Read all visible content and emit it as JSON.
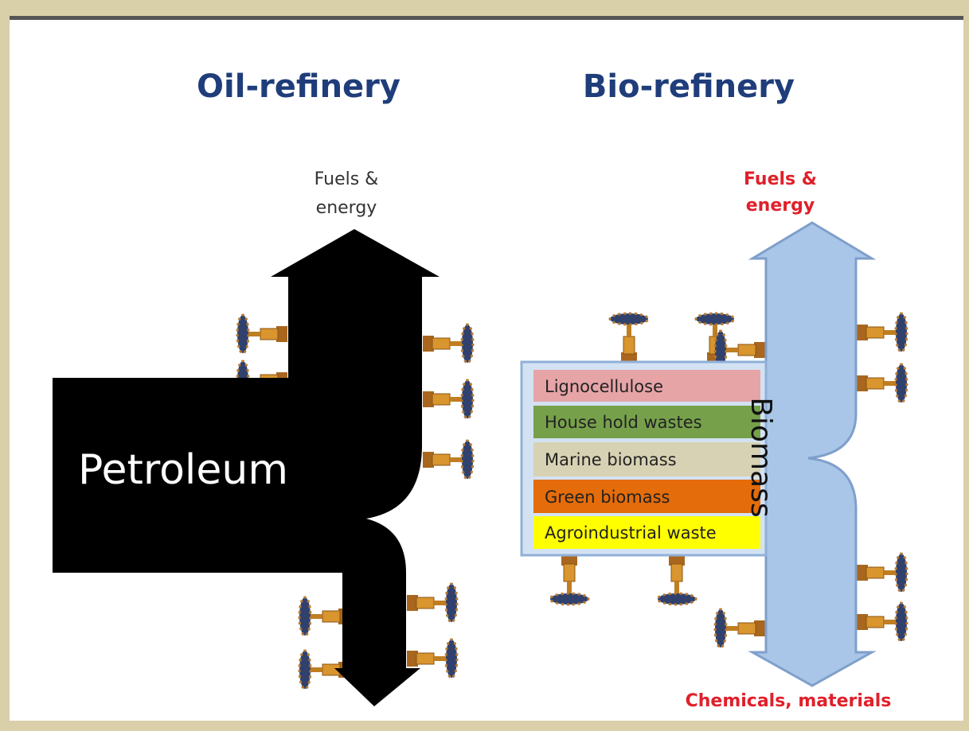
{
  "oil": {
    "title": "Oil-refinery",
    "output_top": [
      "Fuels &",
      "energy"
    ],
    "input": "Petroleum"
  },
  "bio": {
    "title": "Bio-refinery",
    "output_top": [
      "Fuels &",
      "energy"
    ],
    "input": "Biomass",
    "feedstocks": [
      "Lignocellulose",
      "House hold wastes",
      "Marine biomass",
      "Green biomass",
      "Agroindustrial waste"
    ],
    "output_bottom": "Chemicals, materials"
  }
}
